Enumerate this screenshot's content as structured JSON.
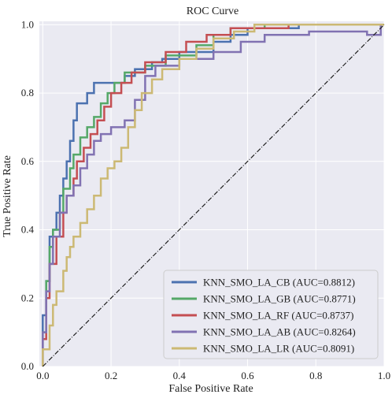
{
  "chart_data": {
    "type": "line",
    "title": "ROC Curve",
    "xlabel": "False Positive Rate",
    "ylabel": "True Positive Rate",
    "xlim": [
      -0.01,
      1.0
    ],
    "ylim": [
      0.0,
      1.01
    ],
    "xticks": [
      "0.0",
      "0.2",
      "0.4",
      "0.6",
      "0.8",
      "1.0"
    ],
    "yticks": [
      "0.0",
      "0.2",
      "0.4",
      "0.6",
      "0.8",
      "1.0"
    ],
    "grid": true,
    "legend_position": "lower-right",
    "background": "#EAEAF2",
    "series": [
      {
        "name": "KNN_SMO_LA_CB (AUC=0.8812)",
        "color": "#4C72B0",
        "points": [
          [
            0,
            0
          ],
          [
            0,
            0.15
          ],
          [
            0.01,
            0.15
          ],
          [
            0.01,
            0.25
          ],
          [
            0.02,
            0.25
          ],
          [
            0.02,
            0.38
          ],
          [
            0.03,
            0.38
          ],
          [
            0.03,
            0.4
          ],
          [
            0.04,
            0.4
          ],
          [
            0.04,
            0.45
          ],
          [
            0.05,
            0.45
          ],
          [
            0.05,
            0.5
          ],
          [
            0.06,
            0.5
          ],
          [
            0.06,
            0.55
          ],
          [
            0.07,
            0.55
          ],
          [
            0.07,
            0.6
          ],
          [
            0.08,
            0.6
          ],
          [
            0.08,
            0.66
          ],
          [
            0.09,
            0.66
          ],
          [
            0.09,
            0.72
          ],
          [
            0.1,
            0.72
          ],
          [
            0.1,
            0.77
          ],
          [
            0.13,
            0.77
          ],
          [
            0.13,
            0.8
          ],
          [
            0.15,
            0.8
          ],
          [
            0.15,
            0.83
          ],
          [
            0.24,
            0.83
          ],
          [
            0.24,
            0.85
          ],
          [
            0.27,
            0.85
          ],
          [
            0.27,
            0.87
          ],
          [
            0.32,
            0.87
          ],
          [
            0.32,
            0.89
          ],
          [
            0.35,
            0.89
          ],
          [
            0.35,
            0.9
          ],
          [
            0.4,
            0.9
          ],
          [
            0.4,
            0.92
          ],
          [
            0.5,
            0.92
          ],
          [
            0.5,
            0.95
          ],
          [
            0.55,
            0.95
          ],
          [
            0.55,
            0.97
          ],
          [
            0.6,
            0.97
          ],
          [
            0.6,
            0.99
          ],
          [
            0.75,
            0.99
          ],
          [
            0.75,
            1.0
          ],
          [
            1.0,
            1.0
          ]
        ]
      },
      {
        "name": "KNN_SMO_LA_GB (AUC=0.8771)",
        "color": "#55A868",
        "points": [
          [
            0,
            0
          ],
          [
            0,
            0.1
          ],
          [
            0.01,
            0.1
          ],
          [
            0.01,
            0.25
          ],
          [
            0.02,
            0.25
          ],
          [
            0.02,
            0.35
          ],
          [
            0.03,
            0.35
          ],
          [
            0.03,
            0.4
          ],
          [
            0.05,
            0.4
          ],
          [
            0.05,
            0.45
          ],
          [
            0.06,
            0.45
          ],
          [
            0.06,
            0.52
          ],
          [
            0.08,
            0.52
          ],
          [
            0.08,
            0.58
          ],
          [
            0.09,
            0.58
          ],
          [
            0.09,
            0.62
          ],
          [
            0.11,
            0.62
          ],
          [
            0.11,
            0.67
          ],
          [
            0.13,
            0.67
          ],
          [
            0.13,
            0.7
          ],
          [
            0.15,
            0.7
          ],
          [
            0.15,
            0.73
          ],
          [
            0.17,
            0.73
          ],
          [
            0.17,
            0.77
          ],
          [
            0.19,
            0.77
          ],
          [
            0.19,
            0.8
          ],
          [
            0.21,
            0.8
          ],
          [
            0.21,
            0.83
          ],
          [
            0.24,
            0.83
          ],
          [
            0.24,
            0.86
          ],
          [
            0.3,
            0.86
          ],
          [
            0.3,
            0.88
          ],
          [
            0.36,
            0.88
          ],
          [
            0.36,
            0.91
          ],
          [
            0.45,
            0.91
          ],
          [
            0.45,
            0.94
          ],
          [
            0.5,
            0.94
          ],
          [
            0.5,
            0.97
          ],
          [
            0.55,
            0.97
          ],
          [
            0.55,
            0.99
          ],
          [
            0.65,
            0.99
          ],
          [
            0.65,
            1.0
          ],
          [
            1.0,
            1.0
          ]
        ]
      },
      {
        "name": "KNN_SMO_LA_RF (AUC=0.8737)",
        "color": "#C44E52",
        "points": [
          [
            0,
            0
          ],
          [
            0,
            0.08
          ],
          [
            0.01,
            0.08
          ],
          [
            0.01,
            0.2
          ],
          [
            0.02,
            0.2
          ],
          [
            0.02,
            0.3
          ],
          [
            0.04,
            0.3
          ],
          [
            0.04,
            0.38
          ],
          [
            0.06,
            0.38
          ],
          [
            0.06,
            0.45
          ],
          [
            0.07,
            0.45
          ],
          [
            0.07,
            0.5
          ],
          [
            0.09,
            0.5
          ],
          [
            0.09,
            0.55
          ],
          [
            0.1,
            0.55
          ],
          [
            0.1,
            0.6
          ],
          [
            0.12,
            0.6
          ],
          [
            0.12,
            0.64
          ],
          [
            0.14,
            0.64
          ],
          [
            0.14,
            0.68
          ],
          [
            0.16,
            0.68
          ],
          [
            0.16,
            0.72
          ],
          [
            0.18,
            0.72
          ],
          [
            0.18,
            0.76
          ],
          [
            0.2,
            0.76
          ],
          [
            0.2,
            0.8
          ],
          [
            0.23,
            0.8
          ],
          [
            0.23,
            0.83
          ],
          [
            0.26,
            0.83
          ],
          [
            0.26,
            0.86
          ],
          [
            0.3,
            0.86
          ],
          [
            0.3,
            0.89
          ],
          [
            0.36,
            0.89
          ],
          [
            0.36,
            0.92
          ],
          [
            0.42,
            0.92
          ],
          [
            0.42,
            0.95
          ],
          [
            0.48,
            0.95
          ],
          [
            0.48,
            0.97
          ],
          [
            0.55,
            0.97
          ],
          [
            0.55,
            0.99
          ],
          [
            0.72,
            0.99
          ],
          [
            0.72,
            1.0
          ],
          [
            1.0,
            1.0
          ]
        ]
      },
      {
        "name": "KNN_SMO_LA_AB (AUC=0.8264)",
        "color": "#8172B2",
        "points": [
          [
            0,
            0
          ],
          [
            0,
            0.1
          ],
          [
            0.01,
            0.1
          ],
          [
            0.01,
            0.22
          ],
          [
            0.02,
            0.22
          ],
          [
            0.02,
            0.3
          ],
          [
            0.03,
            0.3
          ],
          [
            0.03,
            0.38
          ],
          [
            0.05,
            0.38
          ],
          [
            0.05,
            0.45
          ],
          [
            0.07,
            0.45
          ],
          [
            0.07,
            0.5
          ],
          [
            0.09,
            0.5
          ],
          [
            0.09,
            0.53
          ],
          [
            0.11,
            0.53
          ],
          [
            0.11,
            0.58
          ],
          [
            0.13,
            0.58
          ],
          [
            0.13,
            0.62
          ],
          [
            0.15,
            0.62
          ],
          [
            0.15,
            0.66
          ],
          [
            0.17,
            0.66
          ],
          [
            0.17,
            0.68
          ],
          [
            0.2,
            0.68
          ],
          [
            0.2,
            0.7
          ],
          [
            0.24,
            0.7
          ],
          [
            0.24,
            0.72
          ],
          [
            0.27,
            0.72
          ],
          [
            0.27,
            0.78
          ],
          [
            0.3,
            0.78
          ],
          [
            0.3,
            0.85
          ],
          [
            0.33,
            0.85
          ],
          [
            0.33,
            0.88
          ],
          [
            0.4,
            0.88
          ],
          [
            0.4,
            0.9
          ],
          [
            0.5,
            0.9
          ],
          [
            0.5,
            0.92
          ],
          [
            0.58,
            0.92
          ],
          [
            0.58,
            0.95
          ],
          [
            0.65,
            0.95
          ],
          [
            0.65,
            0.97
          ],
          [
            0.78,
            0.97
          ],
          [
            0.78,
            0.98
          ],
          [
            0.95,
            0.98
          ],
          [
            0.95,
            0.97
          ],
          [
            0.99,
            0.97
          ],
          [
            0.99,
            1.0
          ],
          [
            1.0,
            1.0
          ]
        ]
      },
      {
        "name": "KNN_SMO_LA_LR (AUC=0.8091)",
        "color": "#CCB974",
        "points": [
          [
            0,
            0
          ],
          [
            0,
            0.05
          ],
          [
            0.02,
            0.05
          ],
          [
            0.02,
            0.12
          ],
          [
            0.03,
            0.12
          ],
          [
            0.03,
            0.18
          ],
          [
            0.04,
            0.18
          ],
          [
            0.04,
            0.22
          ],
          [
            0.06,
            0.22
          ],
          [
            0.06,
            0.28
          ],
          [
            0.07,
            0.28
          ],
          [
            0.07,
            0.32
          ],
          [
            0.08,
            0.32
          ],
          [
            0.08,
            0.35
          ],
          [
            0.09,
            0.35
          ],
          [
            0.09,
            0.38
          ],
          [
            0.11,
            0.38
          ],
          [
            0.11,
            0.42
          ],
          [
            0.13,
            0.42
          ],
          [
            0.13,
            0.46
          ],
          [
            0.15,
            0.46
          ],
          [
            0.15,
            0.5
          ],
          [
            0.17,
            0.5
          ],
          [
            0.17,
            0.55
          ],
          [
            0.19,
            0.55
          ],
          [
            0.19,
            0.58
          ],
          [
            0.21,
            0.58
          ],
          [
            0.21,
            0.6
          ],
          [
            0.23,
            0.6
          ],
          [
            0.23,
            0.64
          ],
          [
            0.25,
            0.64
          ],
          [
            0.25,
            0.7
          ],
          [
            0.27,
            0.7
          ],
          [
            0.27,
            0.75
          ],
          [
            0.29,
            0.75
          ],
          [
            0.29,
            0.8
          ],
          [
            0.32,
            0.8
          ],
          [
            0.32,
            0.84
          ],
          [
            0.35,
            0.84
          ],
          [
            0.35,
            0.87
          ],
          [
            0.4,
            0.87
          ],
          [
            0.4,
            0.9
          ],
          [
            0.45,
            0.9
          ],
          [
            0.45,
            0.93
          ],
          [
            0.5,
            0.93
          ],
          [
            0.5,
            0.96
          ],
          [
            0.56,
            0.96
          ],
          [
            0.56,
            0.98
          ],
          [
            0.62,
            0.98
          ],
          [
            0.62,
            1.0
          ],
          [
            1.0,
            1.0
          ]
        ]
      }
    ],
    "reference_line": {
      "points": [
        [
          0,
          0
        ],
        [
          1,
          1
        ]
      ],
      "color": "#222222",
      "style": "dash-dot"
    }
  }
}
